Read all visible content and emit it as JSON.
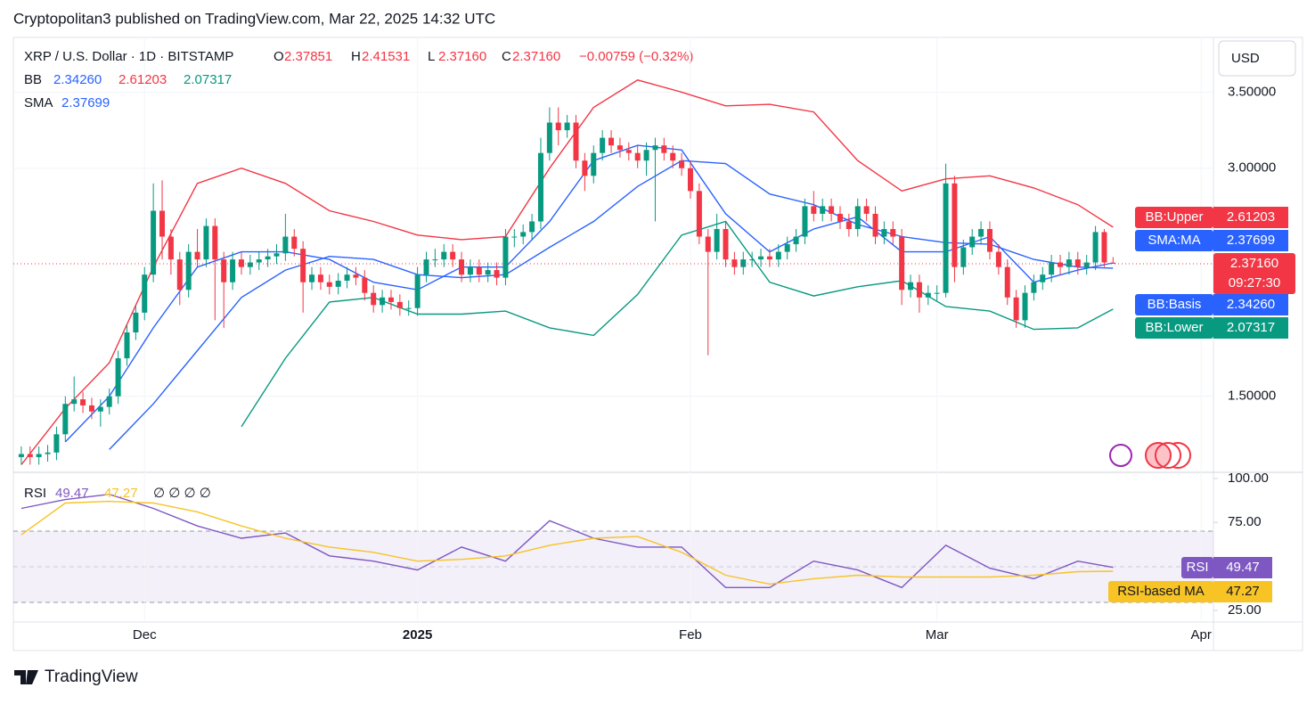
{
  "header": {
    "title": "Cryptopolitan3 published on TradingView.com, Mar 22, 2025 14:32 UTC",
    "logo": "TradingView"
  },
  "chart_data": [
    {
      "type": "candlestick",
      "symbol": "XRP / U.S. Dollar · 1D · BITSTAMP",
      "ohlc_legend": [
        {
          "key": "O",
          "value": "2.37851"
        },
        {
          "key": "H",
          "value": "2.41531"
        },
        {
          "key": "L",
          "value": "2.37160"
        },
        {
          "key": "C",
          "value": "2.37160"
        }
      ],
      "change": "−0.00759 (−0.32%)",
      "currency": "USD",
      "indicators": [
        {
          "name": "BB",
          "values": [
            "2.34260",
            "2.61203",
            "2.07317"
          ],
          "colors": [
            "#2962ff",
            "#f23645",
            "#089981"
          ]
        },
        {
          "name": "SMA",
          "values": [
            "2.37699"
          ],
          "colors": [
            "#2962ff"
          ]
        }
      ],
      "up_color": "#089981",
      "down_color": "#f23645",
      "open": [
        1.1,
        1.12,
        1.1,
        1.12,
        1.13,
        1.25,
        1.45,
        1.48,
        1.44,
        1.4,
        1.43,
        1.5,
        1.75,
        1.92,
        2.05,
        2.3,
        2.72,
        2.55,
        2.4,
        2.2,
        2.45,
        2.4,
        2.62,
        2.4,
        2.25,
        2.4,
        2.35,
        2.38,
        2.4,
        2.42,
        2.44,
        2.55,
        2.47,
        2.25,
        2.3,
        2.25,
        2.22,
        2.26,
        2.3,
        2.28,
        2.18,
        2.1,
        2.15,
        2.12,
        2.08,
        2.08,
        2.3,
        2.4,
        2.4,
        2.45,
        2.4,
        2.3,
        2.35,
        2.3,
        2.33,
        2.28,
        2.55,
        2.55,
        2.58,
        2.65,
        3.1,
        3.3,
        3.25,
        3.3,
        3.05,
        2.95,
        3.1,
        3.2,
        3.15,
        3.12,
        3.1,
        3.05,
        3.12,
        3.15,
        3.1,
        3.05,
        3.0,
        2.85,
        2.55,
        2.45,
        2.6,
        2.4,
        2.35,
        2.4,
        2.4,
        2.42,
        2.4,
        2.45,
        2.5,
        2.55,
        2.75,
        2.7,
        2.75,
        2.7,
        2.65,
        2.6,
        2.75,
        2.7,
        2.55,
        2.6,
        2.55,
        2.2,
        2.25,
        2.15,
        2.18,
        2.18,
        2.9,
        2.35,
        2.48,
        2.55,
        2.6,
        2.45,
        2.35,
        2.15,
        2.0,
        2.18,
        2.25,
        2.3,
        2.38,
        2.35,
        2.4,
        2.35,
        2.38,
        2.58,
        2.37851
      ],
      "high": [
        1.17,
        1.17,
        1.17,
        1.18,
        1.3,
        1.5,
        1.63,
        1.53,
        1.49,
        1.48,
        1.55,
        1.8,
        1.97,
        2.1,
        2.35,
        2.9,
        2.92,
        2.6,
        2.45,
        2.5,
        2.6,
        2.67,
        2.67,
        2.45,
        2.45,
        2.45,
        2.43,
        2.45,
        2.47,
        2.5,
        2.7,
        2.6,
        2.52,
        2.35,
        2.35,
        2.3,
        2.31,
        2.35,
        2.35,
        2.33,
        2.23,
        2.2,
        2.2,
        2.17,
        2.13,
        2.35,
        2.45,
        2.47,
        2.5,
        2.5,
        2.45,
        2.4,
        2.4,
        2.38,
        2.38,
        2.6,
        2.6,
        2.63,
        2.7,
        3.2,
        3.4,
        3.4,
        3.35,
        3.35,
        3.1,
        3.15,
        3.25,
        3.25,
        3.2,
        3.17,
        3.15,
        3.17,
        3.2,
        3.2,
        3.15,
        3.1,
        3.05,
        2.9,
        2.6,
        2.7,
        2.65,
        2.45,
        2.45,
        2.45,
        2.47,
        2.47,
        2.5,
        2.55,
        2.6,
        2.8,
        2.85,
        2.8,
        2.8,
        2.75,
        2.7,
        2.8,
        2.8,
        2.75,
        2.65,
        2.65,
        2.6,
        2.3,
        2.3,
        2.23,
        2.23,
        3.03,
        2.95,
        2.53,
        2.6,
        2.65,
        2.65,
        2.5,
        2.4,
        2.2,
        2.23,
        2.3,
        2.35,
        2.43,
        2.43,
        2.45,
        2.45,
        2.43,
        2.62,
        2.6,
        2.41531
      ],
      "low": [
        1.05,
        1.05,
        1.05,
        1.07,
        1.08,
        1.2,
        1.4,
        1.39,
        1.35,
        1.3,
        1.38,
        1.45,
        1.7,
        1.87,
        2.0,
        2.25,
        2.4,
        2.3,
        2.1,
        2.15,
        2.35,
        2.35,
        2.0,
        1.95,
        2.2,
        2.3,
        2.3,
        2.33,
        2.35,
        2.37,
        2.39,
        2.42,
        2.05,
        2.2,
        2.2,
        2.17,
        2.17,
        2.21,
        2.23,
        2.13,
        2.05,
        2.05,
        2.07,
        2.03,
        2.03,
        2.03,
        2.25,
        2.35,
        2.35,
        2.35,
        2.25,
        2.25,
        2.25,
        2.25,
        2.23,
        2.23,
        2.48,
        2.5,
        2.53,
        2.6,
        3.05,
        3.15,
        3.2,
        3.0,
        2.85,
        2.9,
        3.05,
        3.1,
        3.07,
        3.05,
        3.0,
        2.95,
        2.65,
        3.05,
        3.0,
        2.95,
        2.8,
        2.5,
        1.77,
        2.4,
        2.35,
        2.3,
        2.3,
        2.35,
        2.35,
        2.35,
        2.35,
        2.4,
        2.45,
        2.5,
        2.65,
        2.65,
        2.65,
        2.6,
        2.55,
        2.55,
        2.65,
        2.5,
        2.5,
        2.5,
        2.1,
        2.15,
        2.05,
        2.1,
        2.13,
        2.15,
        2.25,
        2.3,
        2.43,
        2.5,
        2.4,
        2.3,
        2.1,
        1.95,
        1.95,
        2.13,
        2.2,
        2.25,
        2.3,
        2.3,
        2.3,
        2.3,
        2.33,
        2.35,
        2.3716
      ],
      "close": [
        1.12,
        1.1,
        1.12,
        1.13,
        1.25,
        1.45,
        1.48,
        1.44,
        1.4,
        1.43,
        1.5,
        1.75,
        1.92,
        2.05,
        2.3,
        2.72,
        2.55,
        2.4,
        2.2,
        2.45,
        2.4,
        2.62,
        2.4,
        2.25,
        2.4,
        2.35,
        2.38,
        2.4,
        2.42,
        2.44,
        2.55,
        2.47,
        2.25,
        2.3,
        2.25,
        2.22,
        2.26,
        2.3,
        2.28,
        2.18,
        2.1,
        2.15,
        2.12,
        2.08,
        2.08,
        2.3,
        2.4,
        2.4,
        2.45,
        2.4,
        2.3,
        2.35,
        2.3,
        2.33,
        2.28,
        2.55,
        2.55,
        2.58,
        2.65,
        3.1,
        3.3,
        3.25,
        3.3,
        3.05,
        2.95,
        3.1,
        3.2,
        3.15,
        3.12,
        3.1,
        3.05,
        3.12,
        3.15,
        3.1,
        3.05,
        3.0,
        2.85,
        2.55,
        2.45,
        2.6,
        2.4,
        2.35,
        2.4,
        2.4,
        2.42,
        2.4,
        2.45,
        2.5,
        2.55,
        2.75,
        2.7,
        2.75,
        2.7,
        2.65,
        2.6,
        2.75,
        2.7,
        2.55,
        2.6,
        2.55,
        2.2,
        2.25,
        2.15,
        2.18,
        2.18,
        2.9,
        2.35,
        2.48,
        2.55,
        2.6,
        2.45,
        2.35,
        2.15,
        2.0,
        2.18,
        2.25,
        2.3,
        2.38,
        2.35,
        2.4,
        2.35,
        2.38,
        2.58,
        2.38,
        2.3716
      ],
      "last_price_label": "2.37160",
      "countdown": "09:27:30",
      "lines": [
        {
          "name": "BB:Upper",
          "color": "#f23645",
          "label": "2.61203",
          "x": [
            0,
            5,
            10,
            15,
            20,
            25,
            30,
            35,
            40,
            45,
            50,
            55,
            60,
            65,
            70,
            75,
            80,
            85,
            90,
            95,
            100,
            105,
            110,
            115,
            120,
            124
          ],
          "values": [
            1.05,
            1.42,
            1.72,
            2.35,
            2.9,
            3.0,
            2.9,
            2.72,
            2.65,
            2.56,
            2.53,
            2.55,
            3.0,
            3.4,
            3.58,
            3.5,
            3.41,
            3.42,
            3.37,
            3.05,
            2.85,
            2.93,
            2.95,
            2.87,
            2.76,
            2.61203
          ]
        },
        {
          "name": "SMA:MA",
          "color": "#2962ff",
          "label": "2.37699",
          "x": [
            0,
            5,
            10,
            15,
            20,
            25,
            30,
            35,
            40,
            45,
            50,
            55,
            60,
            65,
            70,
            75,
            80,
            85,
            90,
            95,
            100,
            105,
            110,
            115,
            120,
            124
          ],
          "values": [
            null,
            1.2,
            1.5,
            1.95,
            2.35,
            2.45,
            2.45,
            2.4,
            2.25,
            2.2,
            2.35,
            2.35,
            2.65,
            3.05,
            3.15,
            3.12,
            2.7,
            2.45,
            2.6,
            2.68,
            2.45,
            2.45,
            2.55,
            2.25,
            2.33,
            2.37699
          ]
        },
        {
          "name": "BB:Basis",
          "color": "#2962ff",
          "label": "2.34260",
          "x": [
            0,
            5,
            10,
            15,
            20,
            25,
            30,
            35,
            40,
            45,
            50,
            55,
            60,
            65,
            70,
            75,
            80,
            85,
            90,
            95,
            100,
            105,
            110,
            115,
            120,
            124
          ],
          "values": [
            null,
            null,
            1.15,
            1.45,
            1.8,
            2.15,
            2.33,
            2.42,
            2.4,
            2.3,
            2.28,
            2.3,
            2.48,
            2.65,
            2.88,
            3.05,
            3.03,
            2.83,
            2.76,
            2.63,
            2.55,
            2.51,
            2.5,
            2.4,
            2.35,
            2.3426
          ]
        },
        {
          "name": "BB:Lower",
          "color": "#089981",
          "label": "2.07317",
          "x": [
            0,
            5,
            10,
            15,
            20,
            25,
            30,
            35,
            40,
            45,
            50,
            55,
            60,
            65,
            70,
            75,
            80,
            85,
            90,
            95,
            100,
            105,
            110,
            115,
            120,
            124
          ],
          "values": [
            null,
            null,
            null,
            null,
            null,
            1.3,
            1.75,
            2.12,
            2.15,
            2.04,
            2.04,
            2.06,
            1.95,
            1.9,
            2.17,
            2.56,
            2.65,
            2.25,
            2.16,
            2.22,
            2.26,
            2.09,
            2.06,
            1.94,
            1.95,
            2.07317
          ]
        }
      ],
      "xlim": [
        -0.9,
        135.4
      ],
      "ylim": [
        1.0,
        3.86
      ],
      "yticks": [
        {
          "value": 3.5,
          "label": "3.50000"
        },
        {
          "value": 3.0,
          "label": "3.00000"
        },
        {
          "value": 1.5,
          "label": "1.50000"
        }
      ],
      "grid": true
    },
    {
      "type": "line",
      "title": "RSI",
      "legend_extra": "∅ ∅ ∅ ∅",
      "series": [
        {
          "name": "RSI",
          "color": "#7e57c2",
          "label": "49.47",
          "x": [
            0,
            5,
            10,
            15,
            20,
            25,
            30,
            35,
            40,
            45,
            50,
            55,
            60,
            65,
            70,
            75,
            80,
            85,
            90,
            95,
            100,
            105,
            110,
            115,
            120,
            124
          ],
          "values": [
            83,
            88,
            91,
            83,
            73,
            66,
            69,
            56,
            53,
            48,
            61,
            53,
            76,
            66,
            61,
            61,
            38,
            38,
            53,
            48,
            38,
            62,
            49,
            43,
            53,
            49.47
          ]
        },
        {
          "name": "RSI-based MA",
          "color": "#f7c325",
          "label": "47.27",
          "x": [
            0,
            5,
            10,
            15,
            20,
            25,
            30,
            35,
            40,
            45,
            50,
            55,
            60,
            65,
            70,
            75,
            80,
            85,
            90,
            95,
            100,
            105,
            110,
            115,
            120,
            124
          ],
          "values": [
            68,
            86,
            87,
            86,
            81,
            73,
            66,
            61,
            58,
            53,
            54,
            56,
            62,
            66,
            67,
            58,
            45,
            40,
            43,
            45,
            44,
            44,
            44,
            45,
            47,
            47.27
          ]
        }
      ],
      "xlim": [
        -0.9,
        135.4
      ],
      "ylim": [
        18.4,
        103.5
      ],
      "yticks": [
        {
          "value": 100,
          "label": "100.00"
        },
        {
          "value": 75,
          "label": "75.00"
        },
        {
          "value": 25,
          "label": "25.00"
        }
      ],
      "xticks": [
        {
          "value": 14,
          "label": "Dec"
        },
        {
          "value": 45,
          "label": "2025"
        },
        {
          "value": 76,
          "label": "Feb"
        },
        {
          "value": 104,
          "label": "Mar"
        },
        {
          "value": 134,
          "label": "Apr"
        }
      ]
    }
  ]
}
